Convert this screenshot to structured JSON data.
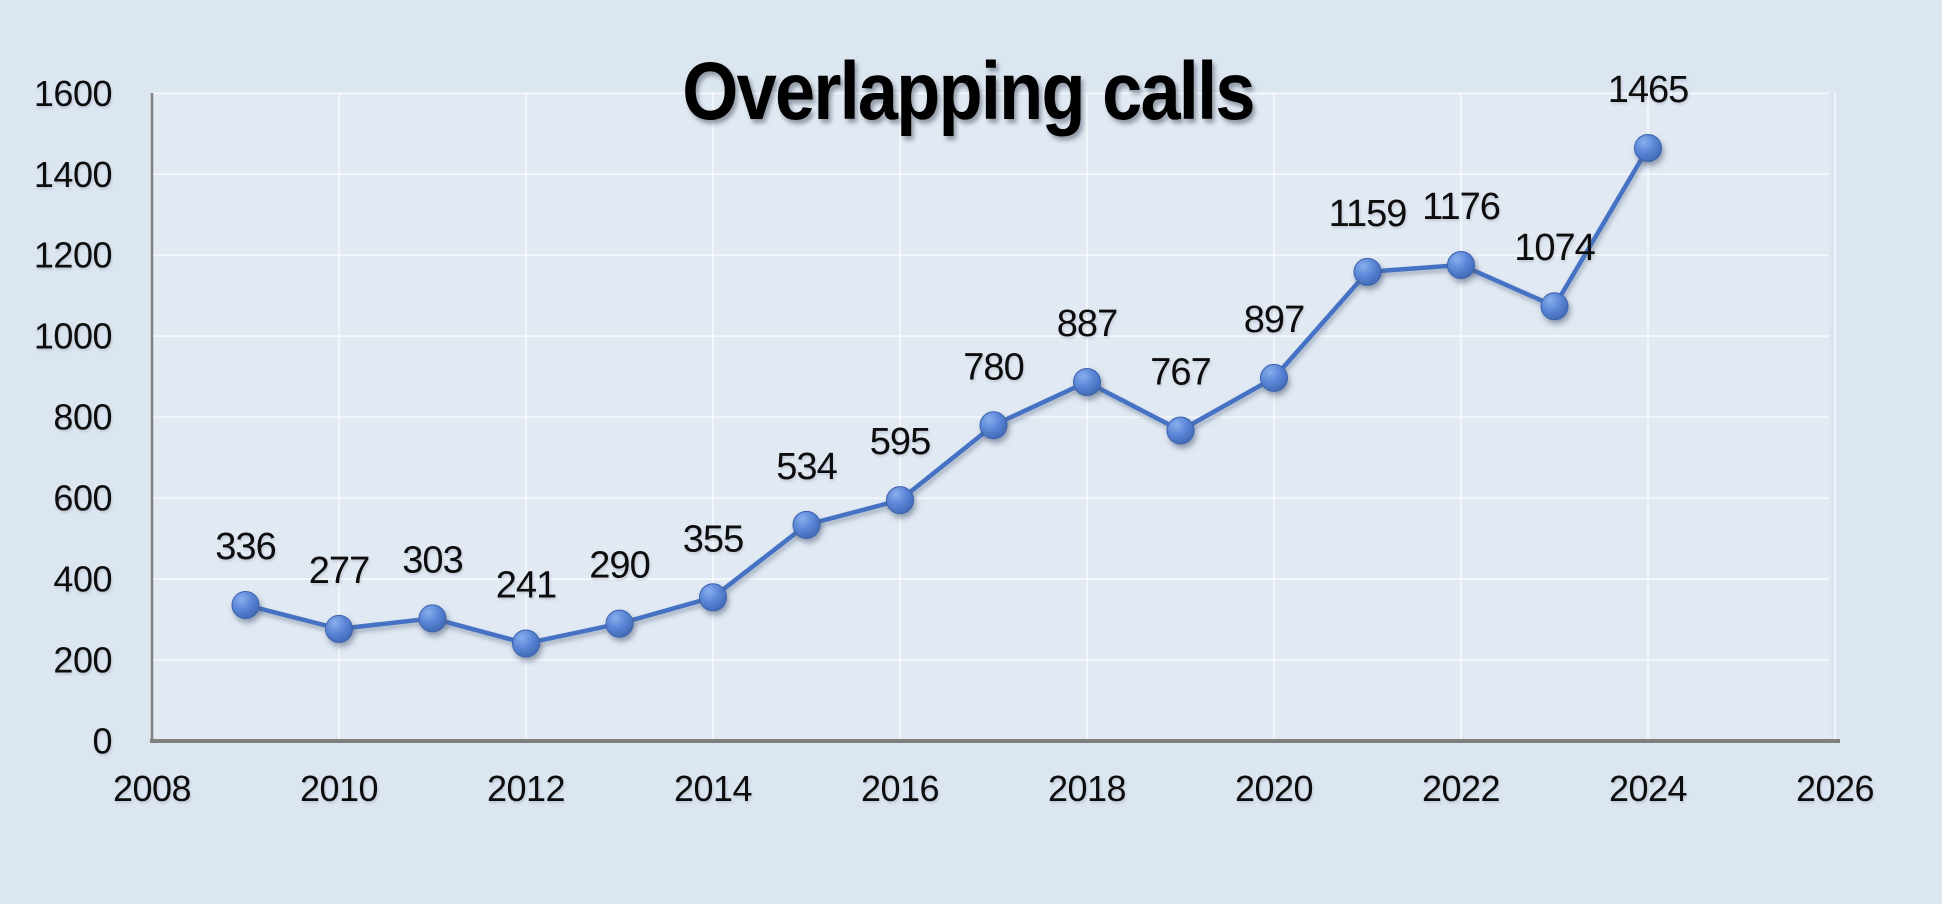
{
  "title": "Overlapping calls",
  "chart_data": {
    "type": "line",
    "title": "Overlapping calls",
    "x": [
      2009,
      2010,
      2011,
      2012,
      2013,
      2014,
      2015,
      2016,
      2017,
      2018,
      2019,
      2020,
      2021,
      2022,
      2023,
      2024
    ],
    "values": [
      336,
      277,
      303,
      241,
      290,
      355,
      534,
      595,
      780,
      887,
      767,
      897,
      1159,
      1176,
      1074,
      1465
    ],
    "data_labels": [
      "336",
      "277",
      "303",
      "241",
      "290",
      "355",
      "534",
      "595",
      "780",
      "887",
      "767",
      "897",
      "1159",
      "1176",
      "1074",
      "1465"
    ],
    "xlabel": "",
    "ylabel": "",
    "xlim": [
      2008,
      2026
    ],
    "ylim": [
      0,
      1600
    ],
    "x_ticks": [
      2008,
      2010,
      2012,
      2014,
      2016,
      2018,
      2020,
      2022,
      2024,
      2026
    ],
    "y_ticks": [
      0,
      200,
      400,
      600,
      800,
      1000,
      1200,
      1400,
      1600
    ],
    "grid": true,
    "legend_position": "none"
  },
  "colors": {
    "background": "#dce6f1",
    "plot_area_tint": "rgba(255,255,255,0.15)",
    "line": "#4472c4",
    "marker_light": "#89aeee",
    "marker_mid": "#5b87d7",
    "marker_dark": "#3a62ad",
    "axis": "#808080",
    "gridline": "rgba(255,255,255,0.65)",
    "text": "#0d0d0d"
  }
}
